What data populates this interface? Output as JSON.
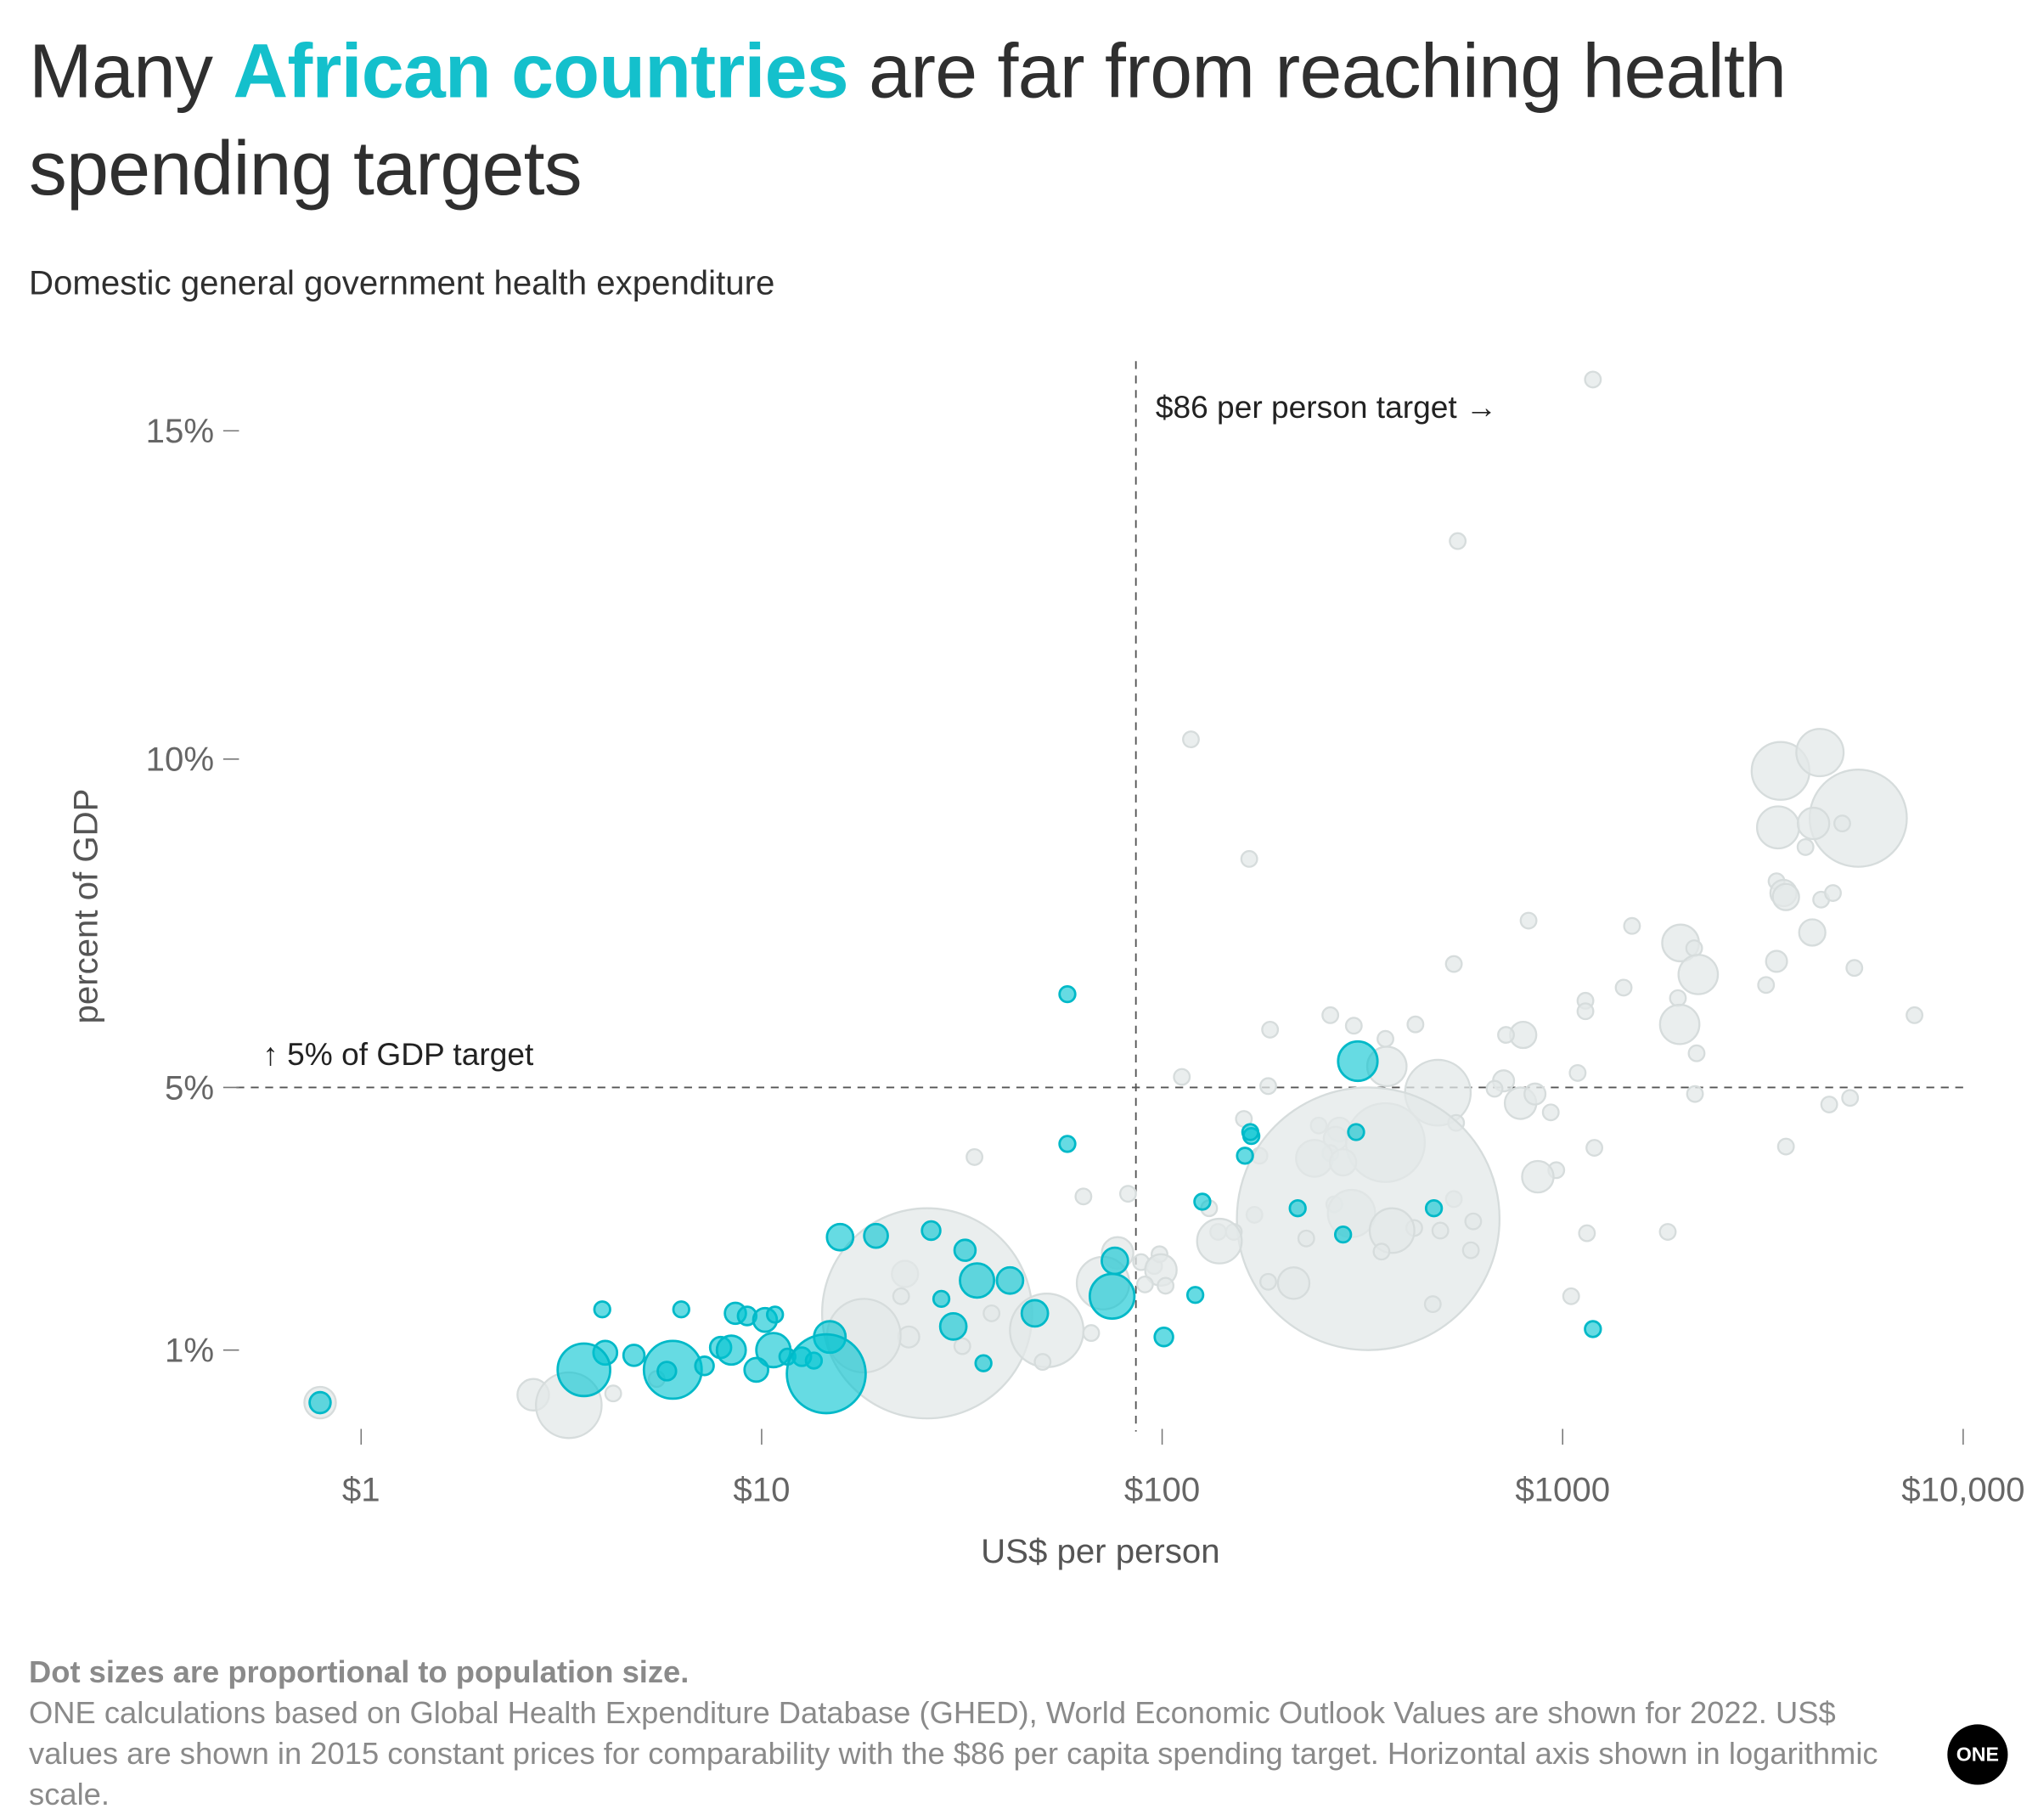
{
  "title": {
    "before": "Many ",
    "highlight": "African countries",
    "after": " are far from reaching health spending targets"
  },
  "subtitle": "Domestic general government health expenditure",
  "footer": {
    "note": "Dot sizes are proportional to population size.",
    "source": "ONE calculations based on Global Health Expenditure Database (GHED), World Economic Outlook Values are shown for 2022. US$ values are shown in 2015 constant prices for comparability with the $86 per capita spending target. Horizontal axis shown in logarithmic scale."
  },
  "logo": "ONE",
  "colors": {
    "africa": "#00c3d0",
    "other": "#e3e8e8",
    "title_highlight": "#14c0cc"
  },
  "chart_data": {
    "type": "scatter",
    "xlabel": "US$ per person",
    "ylabel": "percent of GDP",
    "x_scale": "log",
    "xlim": [
      0.55,
      10000
    ],
    "ylim": [
      0,
      16
    ],
    "x_ticks": [
      {
        "value": 1,
        "label": "$1"
      },
      {
        "value": 10,
        "label": "$10"
      },
      {
        "value": 100,
        "label": "$100"
      },
      {
        "value": 1000,
        "label": "$1000"
      },
      {
        "value": 10000,
        "label": "$10,000"
      }
    ],
    "y_ticks": [
      {
        "value": 1,
        "label": "1%"
      },
      {
        "value": 5,
        "label": "5%"
      },
      {
        "value": 10,
        "label": "10%"
      },
      {
        "value": 15,
        "label": "15%"
      }
    ],
    "grid": false,
    "reference_lines": {
      "vertical": {
        "value": 86,
        "label": "$86 per person target →"
      },
      "horizontal": {
        "value": 5,
        "label": "↑ 5% of GDP target"
      }
    },
    "point_format": [
      "usd_per_person",
      "percent_gdp",
      "relative_population"
    ],
    "series": [
      {
        "group": "other",
        "points": [
          [
            1190,
            15.78,
            36
          ],
          [
            547,
            13.32,
            36
          ],
          [
            118,
            10.3,
            36
          ],
          [
            165,
            8.48,
            36
          ],
          [
            3500,
            9.82,
            484
          ],
          [
            4390,
            10.1,
            324
          ],
          [
            5470,
            9.1,
            1369
          ],
          [
            3450,
            8.96,
            256
          ],
          [
            4230,
            9.02,
            144
          ],
          [
            4990,
            9.02,
            36
          ],
          [
            4040,
            8.66,
            36
          ],
          [
            3420,
            8.14,
            36
          ],
          [
            3560,
            7.96,
            100
          ],
          [
            4420,
            7.86,
            36
          ],
          [
            4730,
            7.96,
            36
          ],
          [
            3610,
            7.9,
            100
          ],
          [
            822,
            7.54,
            36
          ],
          [
            1490,
            7.46,
            36
          ],
          [
            1970,
            7.2,
            196
          ],
          [
            2130,
            7.12,
            36
          ],
          [
            2180,
            6.72,
            225
          ],
          [
            4200,
            7.36,
            100
          ],
          [
            3220,
            6.56,
            36
          ],
          [
            3420,
            6.92,
            64
          ],
          [
            5350,
            6.82,
            36
          ],
          [
            535,
            6.88,
            36
          ],
          [
            1420,
            6.52,
            36
          ],
          [
            1940,
            6.36,
            36
          ],
          [
            7560,
            6.1,
            36
          ],
          [
            1140,
            6.32,
            36
          ],
          [
            1140,
            6.16,
            36
          ],
          [
            263,
            6.1,
            36
          ],
          [
            301,
            5.94,
            36
          ],
          [
            429,
            5.96,
            36
          ],
          [
            797,
            5.8,
            100
          ],
          [
            722,
            5.8,
            36
          ],
          [
            1960,
            5.96,
            225
          ],
          [
            2160,
            5.52,
            36
          ],
          [
            186,
            5.88,
            36
          ],
          [
            361,
            5.74,
            36
          ],
          [
            364,
            5.32,
            225
          ],
          [
            112,
            5.16,
            36
          ],
          [
            488,
            4.92,
            625
          ],
          [
            1090,
            5.22,
            36
          ],
          [
            712,
            5.1,
            64
          ],
          [
            184,
            5.02,
            36
          ],
          [
            785,
            4.76,
            144
          ],
          [
            853,
            4.9,
            64
          ],
          [
            934,
            4.62,
            36
          ],
          [
            676,
            4.98,
            36
          ],
          [
            2140,
            4.9,
            36
          ],
          [
            5220,
            4.84,
            36
          ],
          [
            4630,
            4.74,
            36
          ],
          [
            542,
            4.46,
            36
          ],
          [
            160,
            4.52,
            36
          ],
          [
            246,
            4.42,
            36
          ],
          [
            277,
            4.36,
            81
          ],
          [
            271,
            4.22,
            81
          ],
          [
            361,
            4.16,
            900
          ],
          [
            263,
            4.0,
            36
          ],
          [
            240,
            3.92,
            196
          ],
          [
            283,
            3.86,
            100
          ],
          [
            1200,
            4.08,
            36
          ],
          [
            3610,
            4.1,
            36
          ],
          [
            34,
            3.94,
            36
          ],
          [
            175,
            3.96,
            36
          ],
          [
            964,
            3.74,
            36
          ],
          [
            867,
            3.64,
            144
          ],
          [
            63.6,
            3.34,
            36
          ],
          [
            82.2,
            3.38,
            36
          ],
          [
            535,
            3.3,
            36
          ],
          [
            269,
            3.22,
            36
          ],
          [
            131,
            3.16,
            36
          ],
          [
            297,
            3.08,
            324
          ],
          [
            170,
            3.06,
            36
          ],
          [
            327,
            3.0,
            10000
          ],
          [
            598,
            2.96,
            36
          ],
          [
            426,
            2.86,
            36
          ],
          [
            495,
            2.82,
            36
          ],
          [
            375,
            2.82,
            289
          ],
          [
            1150,
            2.78,
            36
          ],
          [
            1830,
            2.8,
            36
          ],
          [
            138,
            2.8,
            36
          ],
          [
            151,
            2.8,
            36
          ],
          [
            139,
            2.66,
            289
          ],
          [
            229,
            2.7,
            36
          ],
          [
            353,
            2.5,
            36
          ],
          [
            590,
            2.52,
            36
          ],
          [
            77.4,
            2.48,
            144
          ],
          [
            88.6,
            2.34,
            36
          ],
          [
            95.5,
            2.28,
            36
          ],
          [
            98.5,
            2.46,
            36
          ],
          [
            22.8,
            2.16,
            100
          ],
          [
            99.3,
            2.22,
            144
          ],
          [
            90.6,
            2.0,
            36
          ],
          [
            71.2,
            2.02,
            400
          ],
          [
            184,
            2.04,
            36
          ],
          [
            213,
            2.02,
            144
          ],
          [
            102,
            1.98,
            36
          ],
          [
            25.9,
            1.56,
            6400
          ],
          [
            22.3,
            1.82,
            36
          ],
          [
            23.3,
            1.2,
            64
          ],
          [
            37.5,
            1.56,
            36
          ],
          [
            51.5,
            1.3,
            784
          ],
          [
            18,
            1.22,
            784
          ],
          [
            1050,
            1.82,
            36
          ],
          [
            474,
            1.7,
            36
          ],
          [
            66.5,
            1.26,
            36
          ],
          [
            31.7,
            1.06,
            36
          ],
          [
            50.3,
            0.82,
            36
          ],
          [
            2.69,
            0.32,
            144
          ],
          [
            3.3,
            0.16,
            625
          ],
          [
            0.79,
            0.2,
            144
          ],
          [
            4.26,
            0.34,
            36
          ],
          [
            5.47,
            0.56,
            36
          ]
        ]
      },
      {
        "group": "africa",
        "points": [
          [
            0.79,
            0.2,
            64
          ],
          [
            4.0,
            1.62,
            36
          ],
          [
            6.3,
            1.62,
            36
          ],
          [
            4.07,
            0.96,
            81
          ],
          [
            3.6,
            0.7,
            400
          ],
          [
            4.8,
            0.92,
            64
          ],
          [
            6.0,
            0.7,
            484
          ],
          [
            5.8,
            0.68,
            49
          ],
          [
            7.2,
            0.76,
            49
          ],
          [
            7.9,
            1.04,
            64
          ],
          [
            8.4,
            1.0,
            121
          ],
          [
            8.6,
            1.56,
            64
          ],
          [
            9.2,
            1.52,
            49
          ],
          [
            10.2,
            1.46,
            81
          ],
          [
            10.8,
            1.54,
            36
          ],
          [
            10.7,
            1.0,
            169
          ],
          [
            9.7,
            0.7,
            81
          ],
          [
            11.6,
            0.9,
            36
          ],
          [
            12.6,
            0.9,
            49
          ],
          [
            13.5,
            0.84,
            36
          ],
          [
            14.8,
            1.2,
            144
          ],
          [
            14.5,
            0.64,
            900
          ],
          [
            15.7,
            2.72,
            100
          ],
          [
            19.3,
            2.74,
            81
          ],
          [
            26.5,
            2.82,
            49
          ],
          [
            28.1,
            1.78,
            36
          ],
          [
            30.1,
            1.36,
            100
          ],
          [
            32.2,
            2.52,
            64
          ],
          [
            34.5,
            2.06,
            169
          ],
          [
            35.8,
            0.8,
            36
          ],
          [
            41.7,
            2.06,
            100
          ],
          [
            48.1,
            1.56,
            100
          ],
          [
            58,
            6.42,
            36
          ],
          [
            58,
            4.14,
            36
          ],
          [
            76.2,
            2.36,
            100
          ],
          [
            75,
            1.82,
            289
          ],
          [
            101,
            1.2,
            49
          ],
          [
            121,
            1.84,
            36
          ],
          [
            126,
            3.26,
            36
          ],
          [
            161,
            3.96,
            36
          ],
          [
            167,
            4.26,
            36
          ],
          [
            166,
            4.32,
            36
          ],
          [
            218,
            3.16,
            36
          ],
          [
            283,
            2.76,
            36
          ],
          [
            305,
            4.32,
            36
          ],
          [
            308,
            5.4,
            225
          ],
          [
            477,
            3.16,
            36
          ],
          [
            1190,
            1.32,
            36
          ]
        ]
      }
    ]
  }
}
